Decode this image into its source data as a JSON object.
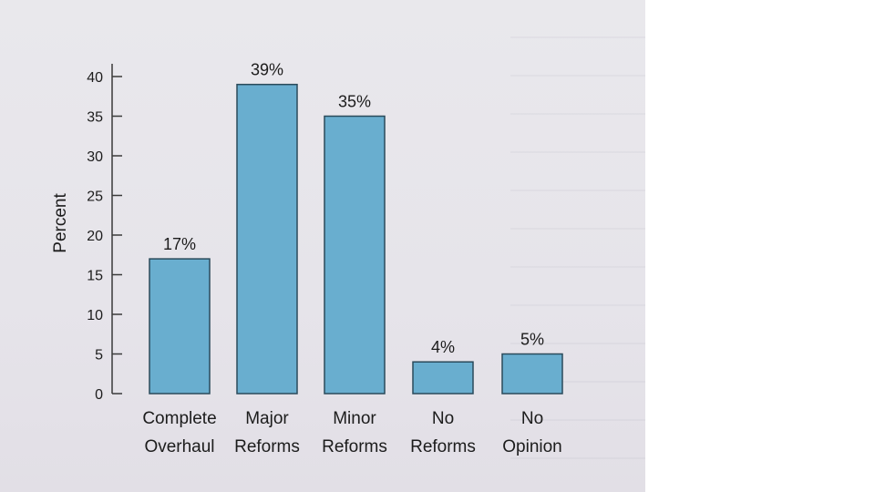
{
  "chart_data": {
    "type": "bar",
    "categories": [
      [
        "Complete",
        "Overhaul"
      ],
      [
        "Major",
        "Reforms"
      ],
      [
        "Minor",
        "Reforms"
      ],
      [
        "No",
        "Reforms"
      ],
      [
        "No",
        "Opinion"
      ]
    ],
    "values": [
      17,
      39,
      35,
      4,
      5
    ],
    "data_labels": [
      "17%",
      "39%",
      "35%",
      "4%",
      "5%"
    ],
    "ylabel": "Percent",
    "ylim": [
      0,
      40
    ],
    "yticks": [
      0,
      5,
      10,
      15,
      20,
      25,
      30,
      35,
      40
    ],
    "grid": false,
    "legend": "none",
    "colors": {
      "bar": "#69aecf",
      "bar_edge": "#2a4a5a",
      "axis": "#3a3a3a",
      "text": "#1c1c1c"
    }
  }
}
